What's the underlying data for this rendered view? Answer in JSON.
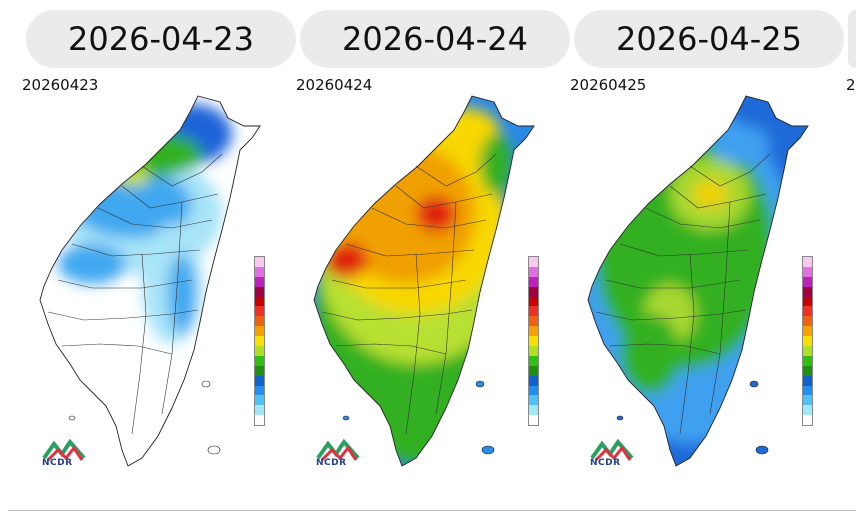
{
  "tabs": [
    {
      "label": "2026-04-23"
    },
    {
      "label": "2026-04-24"
    },
    {
      "label": "2026-04-25"
    },
    {
      "label": ""
    }
  ],
  "panels": [
    {
      "code": "20260423",
      "scheme": "light"
    },
    {
      "code": "20260424",
      "scheme": "heavy"
    },
    {
      "code": "20260425",
      "scheme": "medium"
    }
  ],
  "logo": {
    "text": "NCDR"
  },
  "legend_colors": [
    "#f8c8f0",
    "#e070e0",
    "#c020c0",
    "#a00040",
    "#c80000",
    "#f03020",
    "#f06010",
    "#f8a000",
    "#f8e000",
    "#b0e020",
    "#30c010",
    "#209010",
    "#1060d0",
    "#2090f0",
    "#50c0f8",
    "#a0e8f8",
    "#ffffff"
  ],
  "scheme_colors": {
    "light": {
      "base": "#ffffff",
      "c1": "#a8e4f8",
      "c2": "#40a8f0",
      "c3": "#1e64d8",
      "c4": "#30b020",
      "c5": "#c8e020"
    },
    "heavy": {
      "base": "#2a8ae8",
      "c1": "#30b020",
      "c2": "#b8e030",
      "c3": "#f8d800",
      "c4": "#f0a000",
      "c5": "#e02010"
    },
    "medium": {
      "base": "#1e6ad8",
      "c1": "#40a0f0",
      "c2": "#30b020",
      "c3": "#a8d830",
      "c4": "#f0d000",
      "c5": "#f0a020"
    }
  }
}
